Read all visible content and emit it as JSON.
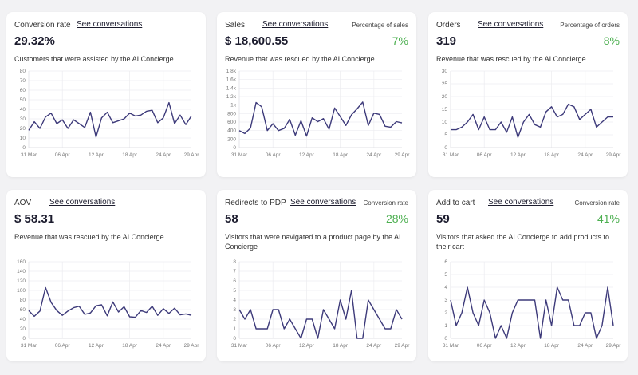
{
  "see_conversations_label": "See conversations",
  "line_color": "#3d3a7a",
  "accent_green": "#4caf50",
  "cards": [
    {
      "label": "Conversion rate",
      "value": "29.32%",
      "side_label": "",
      "side_value": "",
      "description": "Customers that were assisted by the AI Concierge"
    },
    {
      "label": "Sales",
      "value": "$ 18,600.55",
      "side_label": "Percentage of sales",
      "side_value": "7%",
      "description": "Revenue that was rescued by the AI Concierge"
    },
    {
      "label": "Orders",
      "value": "319",
      "side_label": "Percentage of orders",
      "side_value": "8%",
      "description": "Revenue that was rescued by the AI Concierge"
    },
    {
      "label": "AOV",
      "value": "$ 58.31",
      "side_label": "",
      "side_value": "",
      "description": "Revenue that was rescued by the AI Concierge"
    },
    {
      "label": "Redirects to PDP",
      "value": "58",
      "side_label": "Conversion rate",
      "side_value": "28%",
      "description": "Visitors that were navigated to a product page by the AI Concierge"
    },
    {
      "label": "Add to cart",
      "value": "59",
      "side_label": "Conversion rate",
      "side_value": "41%",
      "description": "Visitors that asked the AI Concierge to add products to their cart"
    }
  ],
  "chart_data": [
    {
      "type": "line",
      "x_ticks": [
        "31 Mar",
        "06 Apr",
        "12 Apr",
        "18 Apr",
        "24 Apr",
        "29 Apr"
      ],
      "x_range": [
        "31 Mar",
        "29 Apr"
      ],
      "ylim": [
        0,
        80
      ],
      "y_ticks": [
        "0",
        "10",
        "20",
        "30",
        "40",
        "50",
        "60",
        "70",
        "80"
      ],
      "y_tick_values": [
        0,
        10,
        20,
        30,
        40,
        50,
        60,
        70,
        80
      ],
      "grid": true,
      "values": [
        18,
        27,
        20,
        32,
        36,
        25,
        29,
        20,
        29,
        25,
        21,
        37,
        11,
        31,
        37,
        26,
        28,
        30,
        36,
        33,
        34,
        38,
        39,
        26,
        31,
        47,
        25,
        34,
        24,
        33
      ]
    },
    {
      "type": "line",
      "x_ticks": [
        "31 Mar",
        "06 Apr",
        "12 Apr",
        "18 Apr",
        "24 Apr",
        "29 Apr"
      ],
      "x_range": [
        "31 Mar",
        "29 Apr"
      ],
      "ylim": [
        0,
        1800
      ],
      "y_ticks": [
        "0",
        "200",
        "400",
        "600",
        "800",
        "1k",
        "1.2k",
        "1.4k",
        "1.6k",
        "1.8k"
      ],
      "y_tick_values": [
        0,
        200,
        400,
        600,
        800,
        1000,
        1200,
        1400,
        1600,
        1800
      ],
      "grid": true,
      "values": [
        400,
        330,
        460,
        1060,
        960,
        400,
        560,
        400,
        450,
        660,
        290,
        630,
        270,
        700,
        610,
        680,
        430,
        930,
        730,
        520,
        770,
        910,
        1070,
        520,
        810,
        780,
        500,
        480,
        610,
        580
      ]
    },
    {
      "type": "line",
      "x_ticks": [
        "31 Mar",
        "06 Apr",
        "12 Apr",
        "18 Apr",
        "24 Apr",
        "29 Apr"
      ],
      "x_range": [
        "31 Mar",
        "29 Apr"
      ],
      "ylim": [
        0,
        30
      ],
      "y_ticks": [
        "0",
        "5",
        "10",
        "15",
        "20",
        "25",
        "30"
      ],
      "y_tick_values": [
        0,
        5,
        10,
        15,
        20,
        25,
        30
      ],
      "grid": true,
      "values": [
        7,
        7,
        8,
        10,
        13,
        7,
        12,
        7,
        7,
        10,
        6,
        12,
        4,
        10,
        13,
        9,
        8,
        14,
        16,
        12,
        13,
        17,
        16,
        11,
        13,
        15,
        8,
        10,
        12,
        12
      ]
    },
    {
      "type": "line",
      "x_ticks": [
        "31 Mar",
        "06 Apr",
        "12 Apr",
        "18 Apr",
        "24 Apr",
        "29 Apr"
      ],
      "x_range": [
        "31 Mar",
        "29 Apr"
      ],
      "ylim": [
        0,
        160
      ],
      "y_ticks": [
        "0",
        "20",
        "40",
        "60",
        "80",
        "100",
        "120",
        "140",
        "160"
      ],
      "y_tick_values": [
        0,
        20,
        40,
        60,
        80,
        100,
        120,
        140,
        160
      ],
      "grid": true,
      "values": [
        58,
        46,
        57,
        106,
        75,
        58,
        48,
        57,
        64,
        67,
        50,
        53,
        68,
        70,
        47,
        76,
        55,
        66,
        45,
        44,
        58,
        54,
        67,
        48,
        62,
        52,
        63,
        49,
        51,
        48
      ]
    },
    {
      "type": "line",
      "x_ticks": [
        "31 Mar",
        "06 Apr",
        "12 Apr",
        "18 Apr",
        "24 Apr",
        "29 Apr"
      ],
      "x_range": [
        "31 Mar",
        "29 Apr"
      ],
      "ylim": [
        0,
        8
      ],
      "y_ticks": [
        "0",
        "1",
        "2",
        "3",
        "4",
        "5",
        "6",
        "7",
        "8"
      ],
      "y_tick_values": [
        0,
        1,
        2,
        3,
        4,
        5,
        6,
        7,
        8
      ],
      "grid": true,
      "values": [
        3,
        2,
        3,
        1,
        1,
        1,
        3,
        3,
        1,
        2,
        1,
        0,
        2,
        2,
        0,
        3,
        2,
        1,
        4,
        2,
        5,
        0,
        0,
        4,
        3,
        2,
        1,
        1,
        3,
        2
      ]
    },
    {
      "type": "line",
      "x_ticks": [
        "31 Mar",
        "06 Apr",
        "12 Apr",
        "18 Apr",
        "24 Apr",
        "29 Apr"
      ],
      "x_range": [
        "31 Mar",
        "29 Apr"
      ],
      "ylim": [
        0,
        6
      ],
      "y_ticks": [
        "0",
        "1",
        "2",
        "3",
        "4",
        "5",
        "6"
      ],
      "y_tick_values": [
        0,
        1,
        2,
        3,
        4,
        5,
        6
      ],
      "grid": true,
      "values": [
        3,
        1,
        2,
        4,
        2,
        1,
        3,
        2,
        0,
        1,
        0,
        2,
        3,
        3,
        3,
        3,
        0,
        3,
        1,
        4,
        3,
        3,
        1,
        1,
        2,
        2,
        0,
        1,
        4,
        1
      ]
    }
  ]
}
